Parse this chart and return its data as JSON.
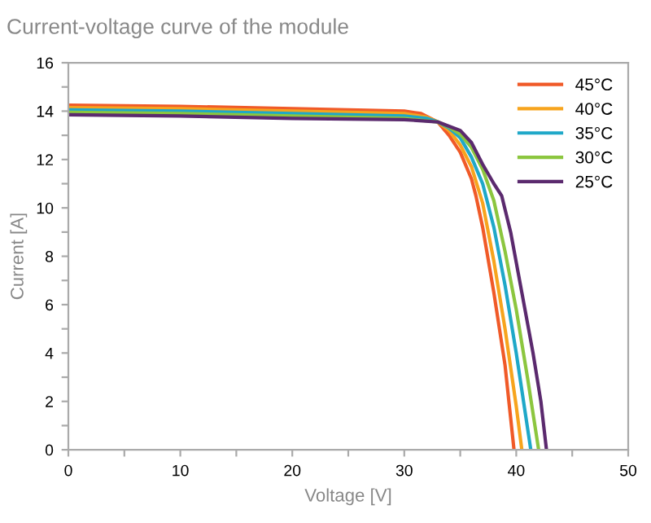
{
  "chart_data": {
    "type": "line",
    "title": "Current-voltage curve of the module",
    "xlabel": "Voltage [V]",
    "ylabel": "Current [A]",
    "xlim": [
      0,
      50
    ],
    "ylim": [
      0,
      16
    ],
    "xticks": [
      0,
      {
        "value": 5,
        "label": null
      },
      10,
      {
        "value": 15,
        "label": null
      },
      20,
      {
        "value": 25,
        "label": null
      },
      30,
      {
        "value": 35,
        "label": null
      },
      40,
      {
        "value": 45,
        "label": null
      },
      50
    ],
    "yticks": [
      0,
      {
        "value": 1,
        "label": null
      },
      2,
      {
        "value": 3,
        "label": null
      },
      4,
      {
        "value": 5,
        "label": null
      },
      6,
      {
        "value": 7,
        "label": null
      },
      8,
      {
        "value": 9,
        "label": null
      },
      10,
      {
        "value": 11,
        "label": null
      },
      12,
      {
        "value": 13,
        "label": null
      },
      14,
      {
        "value": 15,
        "label": null
      },
      16
    ],
    "grid": false,
    "legend": "top right",
    "marker": "none",
    "line_style": "solid",
    "series": [
      {
        "name": "45°C",
        "color": "#f05a28",
        "x": [
          0,
          10,
          20,
          30,
          31.5,
          33,
          34,
          35,
          36,
          36.4,
          37,
          38,
          39,
          39.8
        ],
        "values": [
          14.25,
          14.2,
          14.1,
          14.0,
          13.9,
          13.55,
          13.0,
          12.3,
          11.2,
          10.5,
          9.2,
          6.5,
          3.5,
          0
        ]
      },
      {
        "name": "40°C",
        "color": "#f7a41d",
        "x": [
          0,
          10,
          20,
          30,
          32,
          33,
          34,
          35,
          36,
          37,
          38,
          39,
          40,
          40.5
        ],
        "values": [
          14.15,
          14.1,
          14.0,
          13.9,
          13.75,
          13.55,
          13.2,
          12.6,
          11.7,
          10.2,
          7.8,
          5.0,
          1.8,
          0
        ]
      },
      {
        "name": "35°C",
        "color": "#1fa8c8",
        "x": [
          0,
          10,
          20,
          30,
          32,
          33,
          34,
          35,
          36,
          37,
          38,
          39,
          40,
          41.3
        ],
        "values": [
          14.05,
          14.0,
          13.9,
          13.8,
          13.7,
          13.55,
          13.3,
          12.9,
          12.1,
          11.0,
          9.2,
          6.8,
          4.0,
          0
        ]
      },
      {
        "name": "30°C",
        "color": "#8cc63f",
        "x": [
          0,
          10,
          20,
          30,
          33,
          34,
          35,
          36,
          37,
          38,
          39,
          40,
          41,
          42.0
        ],
        "values": [
          13.95,
          13.9,
          13.8,
          13.7,
          13.55,
          13.35,
          13.05,
          12.5,
          11.6,
          10.3,
          8.2,
          5.8,
          3.0,
          0
        ]
      },
      {
        "name": "25°C",
        "color": "#5b2a6e",
        "x": [
          0,
          10,
          20,
          30,
          33,
          35,
          36,
          37,
          38,
          38.7,
          39.5,
          40.5,
          41.5,
          42.2,
          42.7
        ],
        "values": [
          13.85,
          13.8,
          13.7,
          13.65,
          13.55,
          13.2,
          12.7,
          11.8,
          11.0,
          10.5,
          9.0,
          6.5,
          4.0,
          2.0,
          0
        ]
      }
    ]
  }
}
